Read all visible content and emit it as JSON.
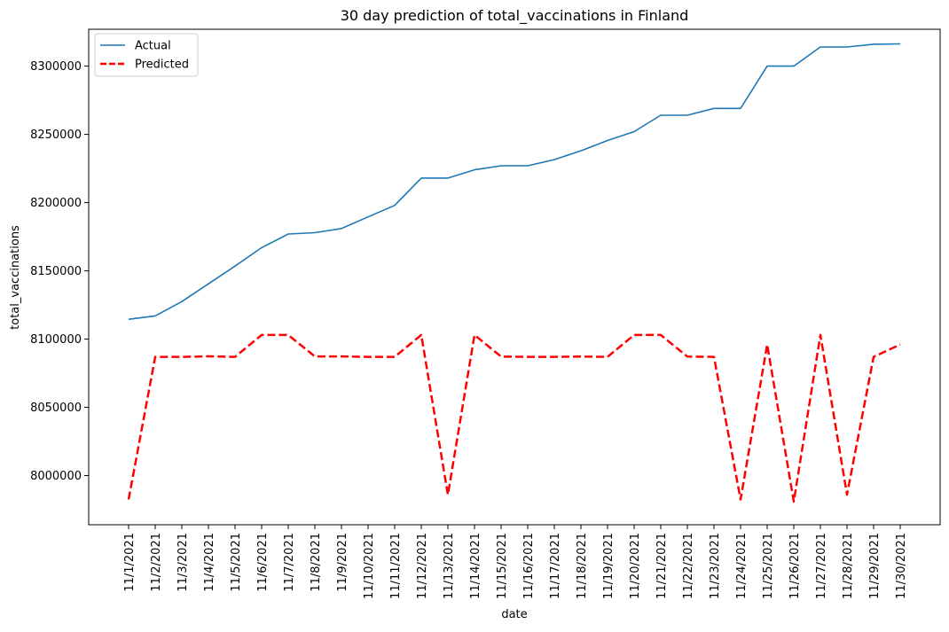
{
  "chart_data": {
    "type": "line",
    "title": "30 day prediction of total_vaccinations in Finland",
    "xlabel": "date",
    "ylabel": "total_vaccinations",
    "x": [
      "11/1/2021",
      "11/2/2021",
      "11/3/2021",
      "11/4/2021",
      "11/5/2021",
      "11/6/2021",
      "11/7/2021",
      "11/8/2021",
      "11/9/2021",
      "11/10/2021",
      "11/11/2021",
      "11/12/2021",
      "11/13/2021",
      "11/14/2021",
      "11/15/2021",
      "11/16/2021",
      "11/17/2021",
      "11/18/2021",
      "11/19/2021",
      "11/20/2021",
      "11/21/2021",
      "11/22/2021",
      "11/23/2021",
      "11/24/2021",
      "11/25/2021",
      "11/26/2021",
      "11/27/2021",
      "11/28/2021",
      "11/29/2021",
      "11/30/2021"
    ],
    "yticks": [
      8000000,
      8050000,
      8100000,
      8150000,
      8200000,
      8250000,
      8300000
    ],
    "ylim": [
      7964000,
      8327000
    ],
    "grid": false,
    "legend_position": "top-left",
    "series": [
      {
        "name": "Actual",
        "color": "#1f77b4",
        "style": "solid",
        "values": [
          8114500,
          8117000,
          8127500,
          8140500,
          8153500,
          8167000,
          8177000,
          8178000,
          8181000,
          8189500,
          8198000,
          8218000,
          8218000,
          8224000,
          8227000,
          8227000,
          8231500,
          8238000,
          8245500,
          8252000,
          8264000,
          8264000,
          8269000,
          8269000,
          8300000,
          8300000,
          8314000,
          8314000,
          8316000,
          8316300
        ]
      },
      {
        "name": "Predicted",
        "color": "#ff0000",
        "style": "dashed",
        "values": [
          7982500,
          8087000,
          8087000,
          8087400,
          8087000,
          8103000,
          8103000,
          8087300,
          8087300,
          8087000,
          8087000,
          8103000,
          7986000,
          8103000,
          8087200,
          8087000,
          8087000,
          8087200,
          8087000,
          8103000,
          8103000,
          8087200,
          8087000,
          7982500,
          8096000,
          7981000,
          8103000,
          7986000,
          8087000,
          8096000
        ]
      }
    ]
  }
}
